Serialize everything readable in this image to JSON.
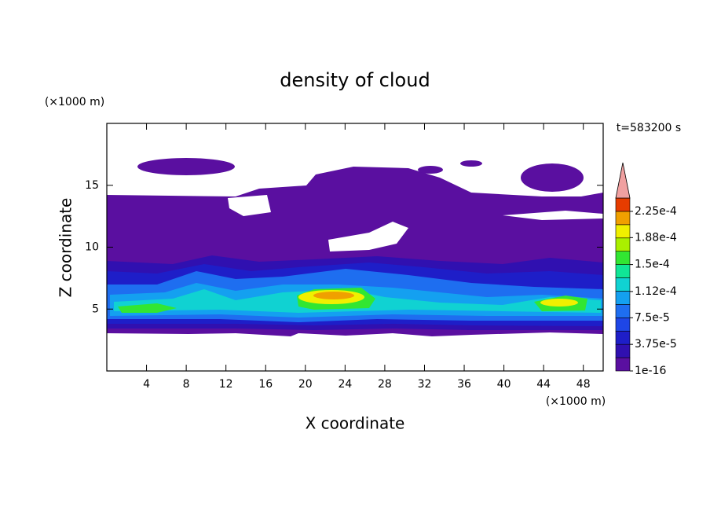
{
  "chart_data": {
    "type": "contour",
    "title": "density of cloud",
    "x_label": "X coordinate",
    "y_label": "Z coordinate",
    "x_unit": "(×1000 m)",
    "y_unit": "(×1000 m)",
    "time_label": "t=583200 s",
    "xlim": [
      0,
      50
    ],
    "ylim": [
      0,
      20
    ],
    "xticks": [
      4,
      8,
      12,
      16,
      20,
      24,
      28,
      32,
      36,
      40,
      44,
      48
    ],
    "yticks": [
      5,
      10,
      15
    ],
    "colorbar": {
      "levels": [
        1e-16,
        1.875e-05,
        3.75e-05,
        5.625e-05,
        7.5e-05,
        9.375e-05,
        0.0001125,
        0.00013125,
        0.00015,
        0.00016875,
        0.0001875,
        0.00020625,
        0.000225,
        0.00024375
      ],
      "colors": [
        "#5a0fa0",
        "#3010b0",
        "#1e1ec8",
        "#1e46e6",
        "#1e6ef0",
        "#14a0f0",
        "#10d2d2",
        "#10e696",
        "#32e632",
        "#aaf000",
        "#f0f000",
        "#f0a000",
        "#e63c00"
      ],
      "extend_color": "#f0a0a0",
      "ticks": [
        1e-16,
        {
          "value": 3.75e-05,
          "label": "3.75e-5"
        },
        {
          "value": 7.5e-05,
          "label": "7.5e-5"
        },
        {
          "value": 0.000112,
          "label": "1.12e-4"
        },
        {
          "value": 0.00015,
          "label": "1.5e-4"
        },
        {
          "value": 0.000188,
          "label": "1.88e-4"
        },
        {
          "value": 0.000225,
          "label": "2.25e-4"
        }
      ]
    }
  }
}
